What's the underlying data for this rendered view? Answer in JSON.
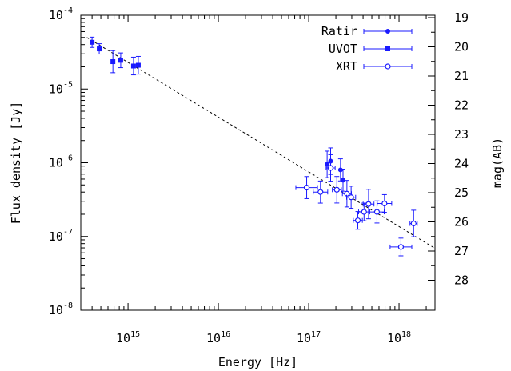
{
  "chart_data": {
    "type": "scatter",
    "xlabel": "Energy [Hz]",
    "ylabel": "Flux density [Jy]",
    "y2label": "mag(AB)",
    "x_scale": "log",
    "y_scale": "log",
    "xlim": [
      300000000000000.0,
      2.5e+18
    ],
    "ylim": [
      1e-08,
      0.0001
    ],
    "x_ticks": [
      {
        "value": 1000000000000000.0,
        "base": "10",
        "exp": "15"
      },
      {
        "value": 1e+16,
        "base": "10",
        "exp": "16"
      },
      {
        "value": 1e+17,
        "base": "10",
        "exp": "17"
      },
      {
        "value": 1e+18,
        "base": "10",
        "exp": "18"
      }
    ],
    "y_ticks": [
      {
        "value": 0.0001,
        "base": "10",
        "exp": "-4"
      },
      {
        "value": 1e-05,
        "base": "10",
        "exp": "-5"
      },
      {
        "value": 1e-06,
        "base": "10",
        "exp": "-6"
      },
      {
        "value": 1e-07,
        "base": "10",
        "exp": "-7"
      },
      {
        "value": 1e-08,
        "base": "10",
        "exp": "-8"
      }
    ],
    "y2_ticks": [
      "19",
      "20",
      "21",
      "22",
      "23",
      "24",
      "25",
      "26",
      "27",
      "28"
    ],
    "grid": false,
    "legend_position": "top-right",
    "colors": {
      "data": "#1a1aff",
      "fit": "#000000",
      "axes": "#000000"
    },
    "fit_line": {
      "style": "dashed",
      "x": [
        350000000000000.0,
        2.5e+18
      ],
      "y": [
        5e-05,
        6.9e-08
      ]
    },
    "series": [
      {
        "name": "Ratir",
        "marker": "filled-circle",
        "points": [
          {
            "x": 1.75e+17,
            "y": 1.05e-06,
            "yerr": 0.18
          },
          {
            "x": 2.25e+17,
            "y": 8e-07,
            "yerr": 0.15
          },
          {
            "x": 2.4e+17,
            "y": 5.8e-07,
            "yerr": 0.15
          },
          {
            "x": 1.6e+17,
            "y": 9.5e-07,
            "yerr": 0.18
          }
        ]
      },
      {
        "name": "UVOT",
        "marker": "filled-square",
        "points": [
          {
            "x": 400000000000000.0,
            "y": 4.3e-05,
            "yerr": 0.07
          },
          {
            "x": 480000000000000.0,
            "y": 3.5e-05,
            "yerr": 0.07
          },
          {
            "x": 680000000000000.0,
            "y": 2.35e-05,
            "yerr": 0.15
          },
          {
            "x": 830000000000000.0,
            "y": 2.45e-05,
            "yerr": 0.1
          },
          {
            "x": 1150000000000000.0,
            "y": 2.05e-05,
            "yerr": 0.12
          },
          {
            "x": 1300000000000000.0,
            "y": 2.1e-05,
            "yerr": 0.12
          }
        ]
      },
      {
        "name": "XRT",
        "marker": "open-circle",
        "points": [
          {
            "x": 9.5e+16,
            "y": 4.6e-07,
            "yerr": 0.15,
            "xerr": 0.12
          },
          {
            "x": 1.35e+17,
            "y": 4e-07,
            "yerr": 0.15,
            "xerr": 0.08
          },
          {
            "x": 1.75e+17,
            "y": 8.5e-07,
            "yerr": 0.18,
            "xerr": 0.05
          },
          {
            "x": 2.05e+17,
            "y": 4.3e-07,
            "yerr": 0.18,
            "xerr": 0.05
          },
          {
            "x": 2.65e+17,
            "y": 3.8e-07,
            "yerr": 0.18,
            "xerr": 0.05
          },
          {
            "x": 2.95e+17,
            "y": 3.4e-07,
            "yerr": 0.15,
            "xerr": 0.05
          },
          {
            "x": 3.5e+17,
            "y": 1.65e-07,
            "yerr": 0.12,
            "xerr": 0.05
          },
          {
            "x": 4.1e+17,
            "y": 2.15e-07,
            "yerr": 0.12,
            "xerr": 0.06
          },
          {
            "x": 4.6e+17,
            "y": 2.75e-07,
            "yerr": 0.2,
            "xerr": 0.06
          },
          {
            "x": 5.7e+17,
            "y": 2.15e-07,
            "yerr": 0.15,
            "xerr": 0.08
          },
          {
            "x": 6.9e+17,
            "y": 2.8e-07,
            "yerr": 0.12,
            "xerr": 0.08
          },
          {
            "x": 1.05e+18,
            "y": 7.2e-08,
            "yerr": 0.12,
            "xerr": 0.12
          },
          {
            "x": 1.45e+18,
            "y": 1.5e-07,
            "yerr": 0.18,
            "xerr": 0.04
          }
        ]
      }
    ]
  }
}
